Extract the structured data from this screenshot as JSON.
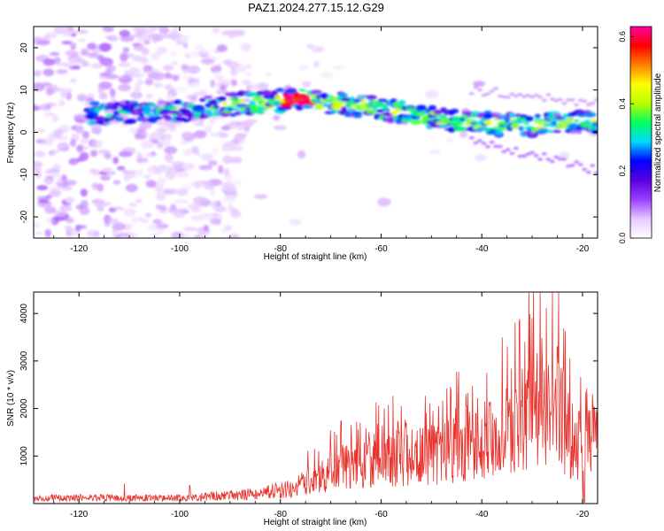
{
  "title": "PAZ1.2024.277.15.12.G29",
  "chart_data": [
    {
      "type": "heatmap",
      "name": "spectrogram",
      "xlabel": "Height of straight line (km)",
      "ylabel": "Frequency (Hz)",
      "xlim": [
        -129,
        -17
      ],
      "ylim": [
        -25,
        25
      ],
      "xticks": [
        -120,
        -100,
        -80,
        -60,
        -40,
        -20
      ],
      "yticks": [
        -20,
        -10,
        0,
        10,
        20
      ],
      "colorbar": {
        "label": "Normalized spectral amplitude",
        "range": [
          0,
          0.63
        ],
        "ticks": [
          0.0,
          0.2,
          0.4,
          0.6
        ],
        "colormap": [
          "#ffffff",
          "#e6c8ff",
          "#9a40ff",
          "#5a00e0",
          "#0000ff",
          "#00d8ff",
          "#00ff60",
          "#b8ff00",
          "#ffff00",
          "#ff8000",
          "#ff0000",
          "#ff00a0"
        ]
      },
      "ridge": {
        "description_points_km_hz": [
          [
            -115,
            4.5
          ],
          [
            -100,
            5
          ],
          [
            -90,
            6.5
          ],
          [
            -80,
            7.5
          ],
          [
            -76,
            7.8
          ],
          [
            -70,
            7
          ],
          [
            -60,
            5.5
          ],
          [
            -50,
            3.5
          ],
          [
            -40,
            2
          ],
          [
            -30,
            1.5
          ],
          [
            -20,
            2.5
          ],
          [
            -17,
            2.5
          ]
        ],
        "peak_amplitude": 0.63,
        "peak_location": [
          -76,
          7.8
        ]
      },
      "noise_region_end_km": -88
    },
    {
      "type": "line",
      "name": "snr",
      "xlabel": "Height of straight line (km)",
      "ylabel": "SNR (10 * v/v)",
      "xlim": [
        -129,
        -17
      ],
      "ylim": [
        0,
        4450
      ],
      "xticks": [
        -120,
        -100,
        -80,
        -60,
        -40,
        -20
      ],
      "yticks": [
        1000,
        2000,
        3000,
        4000
      ],
      "color": "#e8322c",
      "envelope_km_snr": [
        [
          -129,
          150
        ],
        [
          -100,
          150
        ],
        [
          -85,
          250
        ],
        [
          -78,
          400
        ],
        [
          -72,
          700
        ],
        [
          -66,
          1000
        ],
        [
          -60,
          1100
        ],
        [
          -50,
          1300
        ],
        [
          -42,
          1500
        ],
        [
          -35,
          1800
        ],
        [
          -30,
          2300
        ],
        [
          -26,
          2800
        ],
        [
          -22,
          1500
        ],
        [
          -17,
          1700
        ]
      ],
      "peaks_km_snr": [
        [
          -111,
          420
        ],
        [
          -98,
          380
        ],
        [
          -73,
          700
        ],
        [
          -66,
          1650
        ],
        [
          -55,
          1700
        ],
        [
          -50,
          1650
        ],
        [
          -42,
          1300
        ],
        [
          -39,
          2750
        ],
        [
          -33,
          2100
        ],
        [
          -30,
          3900
        ],
        [
          -28,
          3050
        ],
        [
          -26,
          4450
        ],
        [
          -25,
          3300
        ],
        [
          -22,
          2100
        ],
        [
          -18,
          2300
        ]
      ]
    }
  ]
}
